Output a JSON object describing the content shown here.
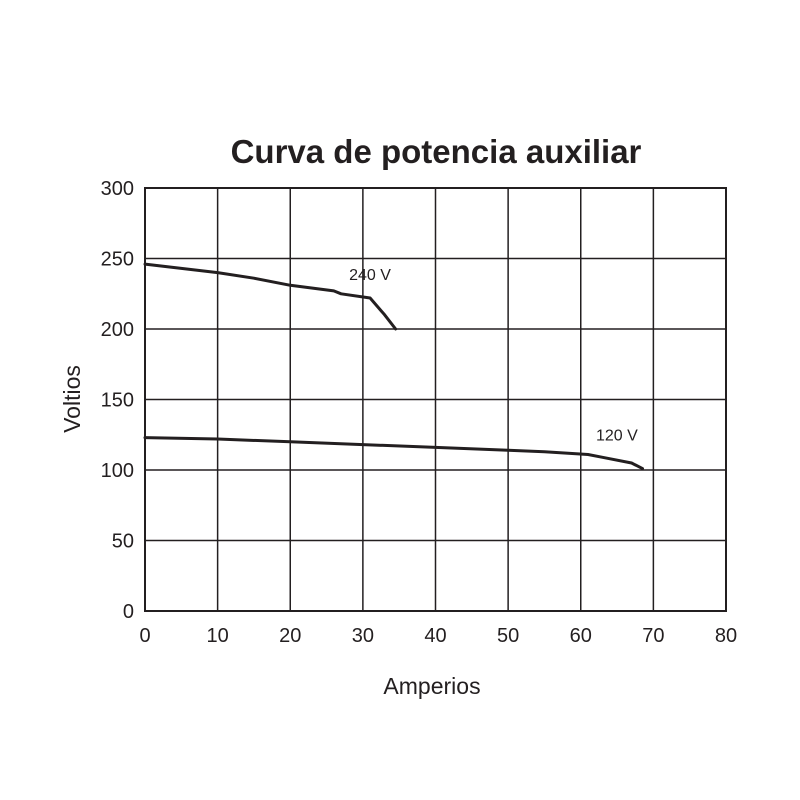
{
  "chart_data": {
    "type": "line",
    "title": "Curva de potencia auxiliar",
    "xlabel": "Amperios",
    "ylabel": "Voltios",
    "xlim": [
      0,
      80
    ],
    "ylim": [
      0,
      300
    ],
    "x_ticks": [
      0,
      10,
      20,
      30,
      40,
      50,
      60,
      70,
      80
    ],
    "y_ticks": [
      0,
      50,
      100,
      150,
      200,
      250,
      300
    ],
    "grid": true,
    "series": [
      {
        "name": "240 V",
        "x": [
          0,
          10,
          15,
          20,
          26,
          27,
          31,
          33,
          34.5
        ],
        "y": [
          246,
          240,
          236,
          231,
          227,
          225,
          222,
          210,
          200
        ]
      },
      {
        "name": "120 V",
        "x": [
          0,
          10,
          20,
          30,
          40,
          50,
          55,
          61,
          63,
          67,
          68.5
        ],
        "y": [
          123,
          122,
          120,
          118,
          116,
          114,
          113,
          111,
          109,
          105,
          101
        ]
      }
    ],
    "line_color": "#231f20"
  }
}
